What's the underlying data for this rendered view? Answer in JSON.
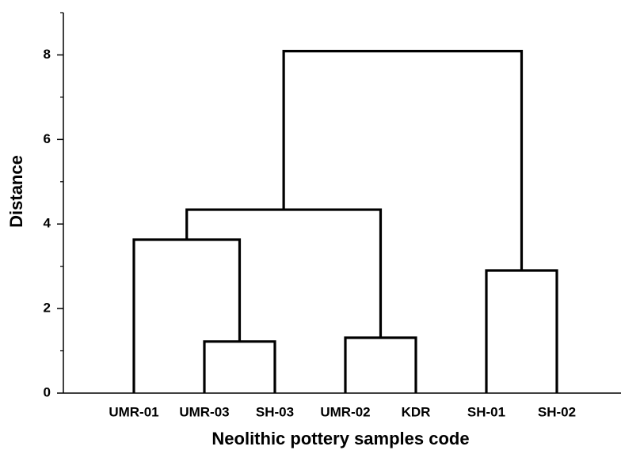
{
  "chart_data": {
    "type": "dendrogram",
    "y_label": "Distance",
    "x_label": "Neolithic pottery samples code",
    "ylim": [
      0,
      9
    ],
    "yticks": [
      0,
      2,
      4,
      6,
      8
    ],
    "minor_yticks": [
      1,
      3,
      5,
      7,
      9
    ],
    "color": "#000000",
    "tree": {
      "height": 8.09,
      "children": [
        {
          "height": 4.34,
          "children": [
            {
              "height": 3.63,
              "children": [
                {
                  "label": "UMR-01"
                },
                {
                  "height": 1.22,
                  "children": [
                    {
                      "label": "UMR-03"
                    },
                    {
                      "label": "SH-03"
                    }
                  ]
                }
              ]
            },
            {
              "height": 1.31,
              "children": [
                {
                  "label": "UMR-02"
                },
                {
                  "label": "KDR"
                }
              ]
            }
          ]
        },
        {
          "height": 2.9,
          "children": [
            {
              "label": "SH-01"
            },
            {
              "label": "SH-02"
            }
          ]
        }
      ]
    }
  }
}
